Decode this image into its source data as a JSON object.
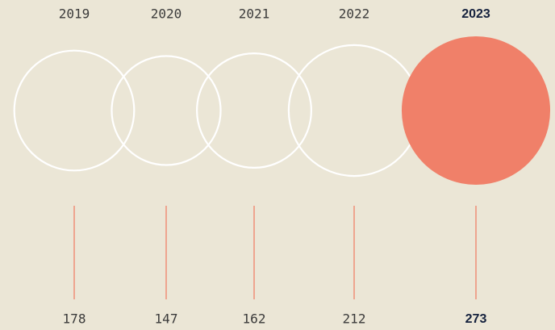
{
  "chart_data": {
    "type": "bubble",
    "categories": [
      "2019",
      "2020",
      "2021",
      "2022",
      "2023"
    ],
    "values": [
      178,
      147,
      162,
      212,
      273
    ],
    "outline_color": "#ffffff",
    "fill_colors": [
      "none",
      "none",
      "none",
      "none",
      "#f08069"
    ],
    "stem_color": "#f08069"
  }
}
